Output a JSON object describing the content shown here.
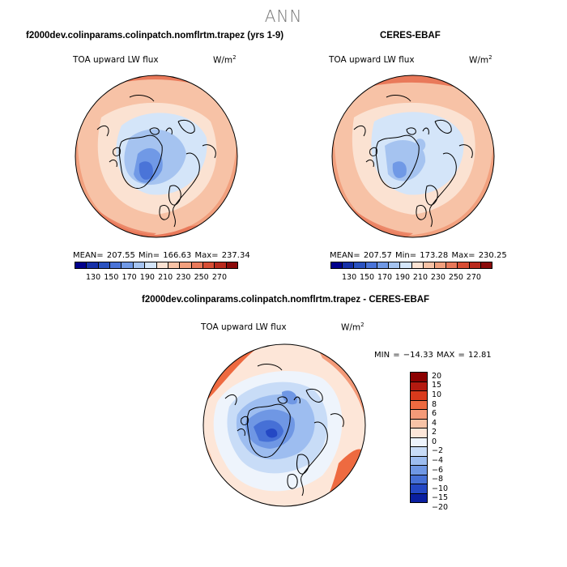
{
  "page": {
    "title": "ANN"
  },
  "panels": [
    {
      "title": "f2000dev.colinparams.colinpatch.nomflrtm.trapez (yrs 1-9)",
      "variable": "TOA upward LW flux",
      "units": "W/m",
      "units_exp": "2",
      "stats": "MEAN= 207.55   Min= 166.63   Max= 237.34",
      "colorbar_labels": [
        "130",
        "150",
        "170",
        "190",
        "210",
        "230",
        "250",
        "270"
      ]
    },
    {
      "title": "CERES-EBAF",
      "variable": "TOA upward LW flux",
      "units": "W/m",
      "units_exp": "2",
      "stats": "MEAN= 207.57   Min= 173.28   Max= 230.25",
      "colorbar_labels": [
        "130",
        "150",
        "170",
        "190",
        "210",
        "230",
        "250",
        "270"
      ]
    },
    {
      "title": "f2000dev.colinparams.colinpatch.nomflrtm.trapez - CERES-EBAF",
      "variable": "TOA upward LW flux",
      "units": "W/m",
      "units_exp": "2",
      "stats": "MIN = −14.33  MAX =  12.81",
      "colorbar_labels": [
        "20",
        "15",
        "10",
        "8",
        "6",
        "4",
        "2",
        "0",
        "−2",
        "−4",
        "−6",
        "−8",
        "−10",
        "−15",
        "−20"
      ]
    }
  ],
  "colors": {
    "abs_scale": [
      "#00008b",
      "#1530a8",
      "#2a52c0",
      "#4a74d8",
      "#7099e6",
      "#a5c3f0",
      "#d4e5f9",
      "#fbe2d2",
      "#f7c2a6",
      "#f2a07e",
      "#e9795a",
      "#d84e35",
      "#b92a1d",
      "#8b0a0a"
    ],
    "diff_scale": [
      "#8b0000",
      "#b41a10",
      "#d93a1c",
      "#ee6a40",
      "#f49a78",
      "#f8c3a6",
      "#fde6d8",
      "#eef4fc",
      "#c8dcf7",
      "#9dbdf0",
      "#6f97e4",
      "#4670d6",
      "#2448c4",
      "#0a1fa0"
    ]
  }
}
